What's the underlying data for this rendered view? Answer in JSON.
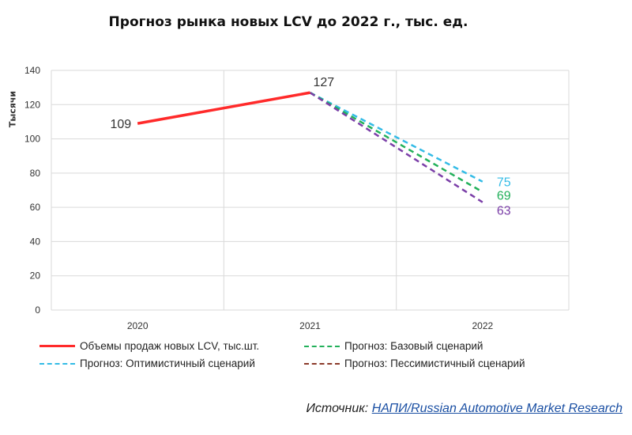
{
  "chart_data": {
    "type": "line",
    "title": "Прогноз рынка новых LCV до 2022 г., тыс. ед.",
    "ylabel": "Тысячи",
    "xlabel": "",
    "categories": [
      "2020",
      "2021",
      "2022"
    ],
    "ylim": [
      0,
      140
    ],
    "yticks": [
      0,
      20,
      40,
      60,
      80,
      100,
      120,
      140
    ],
    "grid": true,
    "legend_position": "bottom",
    "series": [
      {
        "name": "Объемы продаж новых LCV, тыс.шт.",
        "x": [
          "2020",
          "2021"
        ],
        "values": [
          109,
          127
        ],
        "color": "#ff2a2a",
        "style": "solid",
        "labels": [
          "109",
          "127"
        ],
        "label_color": "#333333"
      },
      {
        "name": "Прогноз: Оптимистичный сценарий",
        "x": [
          "2021",
          "2022"
        ],
        "values": [
          127,
          75
        ],
        "color": "#33bbe6",
        "style": "dashed",
        "labels": [
          "",
          "75"
        ],
        "label_color": "#33bbe6"
      },
      {
        "name": "Прогноз: Базовый сценарий",
        "x": [
          "2021",
          "2022"
        ],
        "values": [
          127,
          69
        ],
        "color": "#22b05a",
        "style": "dashed",
        "labels": [
          "",
          "69"
        ],
        "label_color": "#22b05a"
      },
      {
        "name": "Прогноз: Пессимистичный сценарий",
        "x": [
          "2021",
          "2022"
        ],
        "values": [
          127,
          63
        ],
        "color": "#7b3fa8",
        "style": "dashed",
        "labels": [
          "",
          "63"
        ],
        "label_color": "#7b3fa8",
        "legend_color": "#8b3a2a"
      }
    ]
  },
  "source": {
    "prefix": "Источник: ",
    "link": "НАПИ/Russian Automotive Market Research"
  }
}
